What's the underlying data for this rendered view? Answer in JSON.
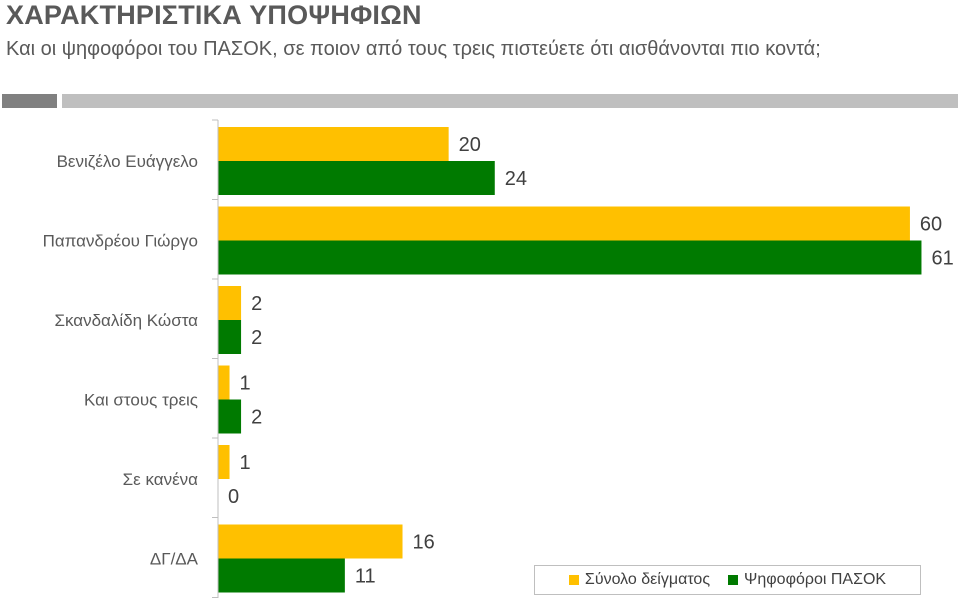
{
  "header": {
    "title": "ΧΑΡΑΚΤΗΡΙΣΤΙΚΑ ΥΠΟΨΗΦΙΩΝ",
    "subtitle": "Και οι ψηφοφόροι του ΠΑΣΟΚ, σε ποιον από τους τρεις πιστεύετε ότι αισθάνονται πιο κοντά;"
  },
  "chart_data": {
    "type": "bar",
    "orientation": "horizontal",
    "categories": [
      "Βενιζέλο Ευάγγελο",
      "Παπανδρέου Γιώργο",
      "Σκανδαλίδη Κώστα",
      "Και στους τρεις",
      "Σε κανένα",
      "ΔΓ/ΔΑ"
    ],
    "series": [
      {
        "name": "Σύνολο δείγματος",
        "color": "#ffc000",
        "values": [
          20,
          60,
          2,
          1,
          1,
          16
        ]
      },
      {
        "name": "Ψηφοφόροι ΠΑΣΟΚ",
        "color": "#007a00",
        "values": [
          24,
          61,
          2,
          2,
          0,
          11
        ]
      }
    ],
    "xlim": [
      0,
      62
    ],
    "grid": false,
    "legend_position": "bottom-right"
  }
}
